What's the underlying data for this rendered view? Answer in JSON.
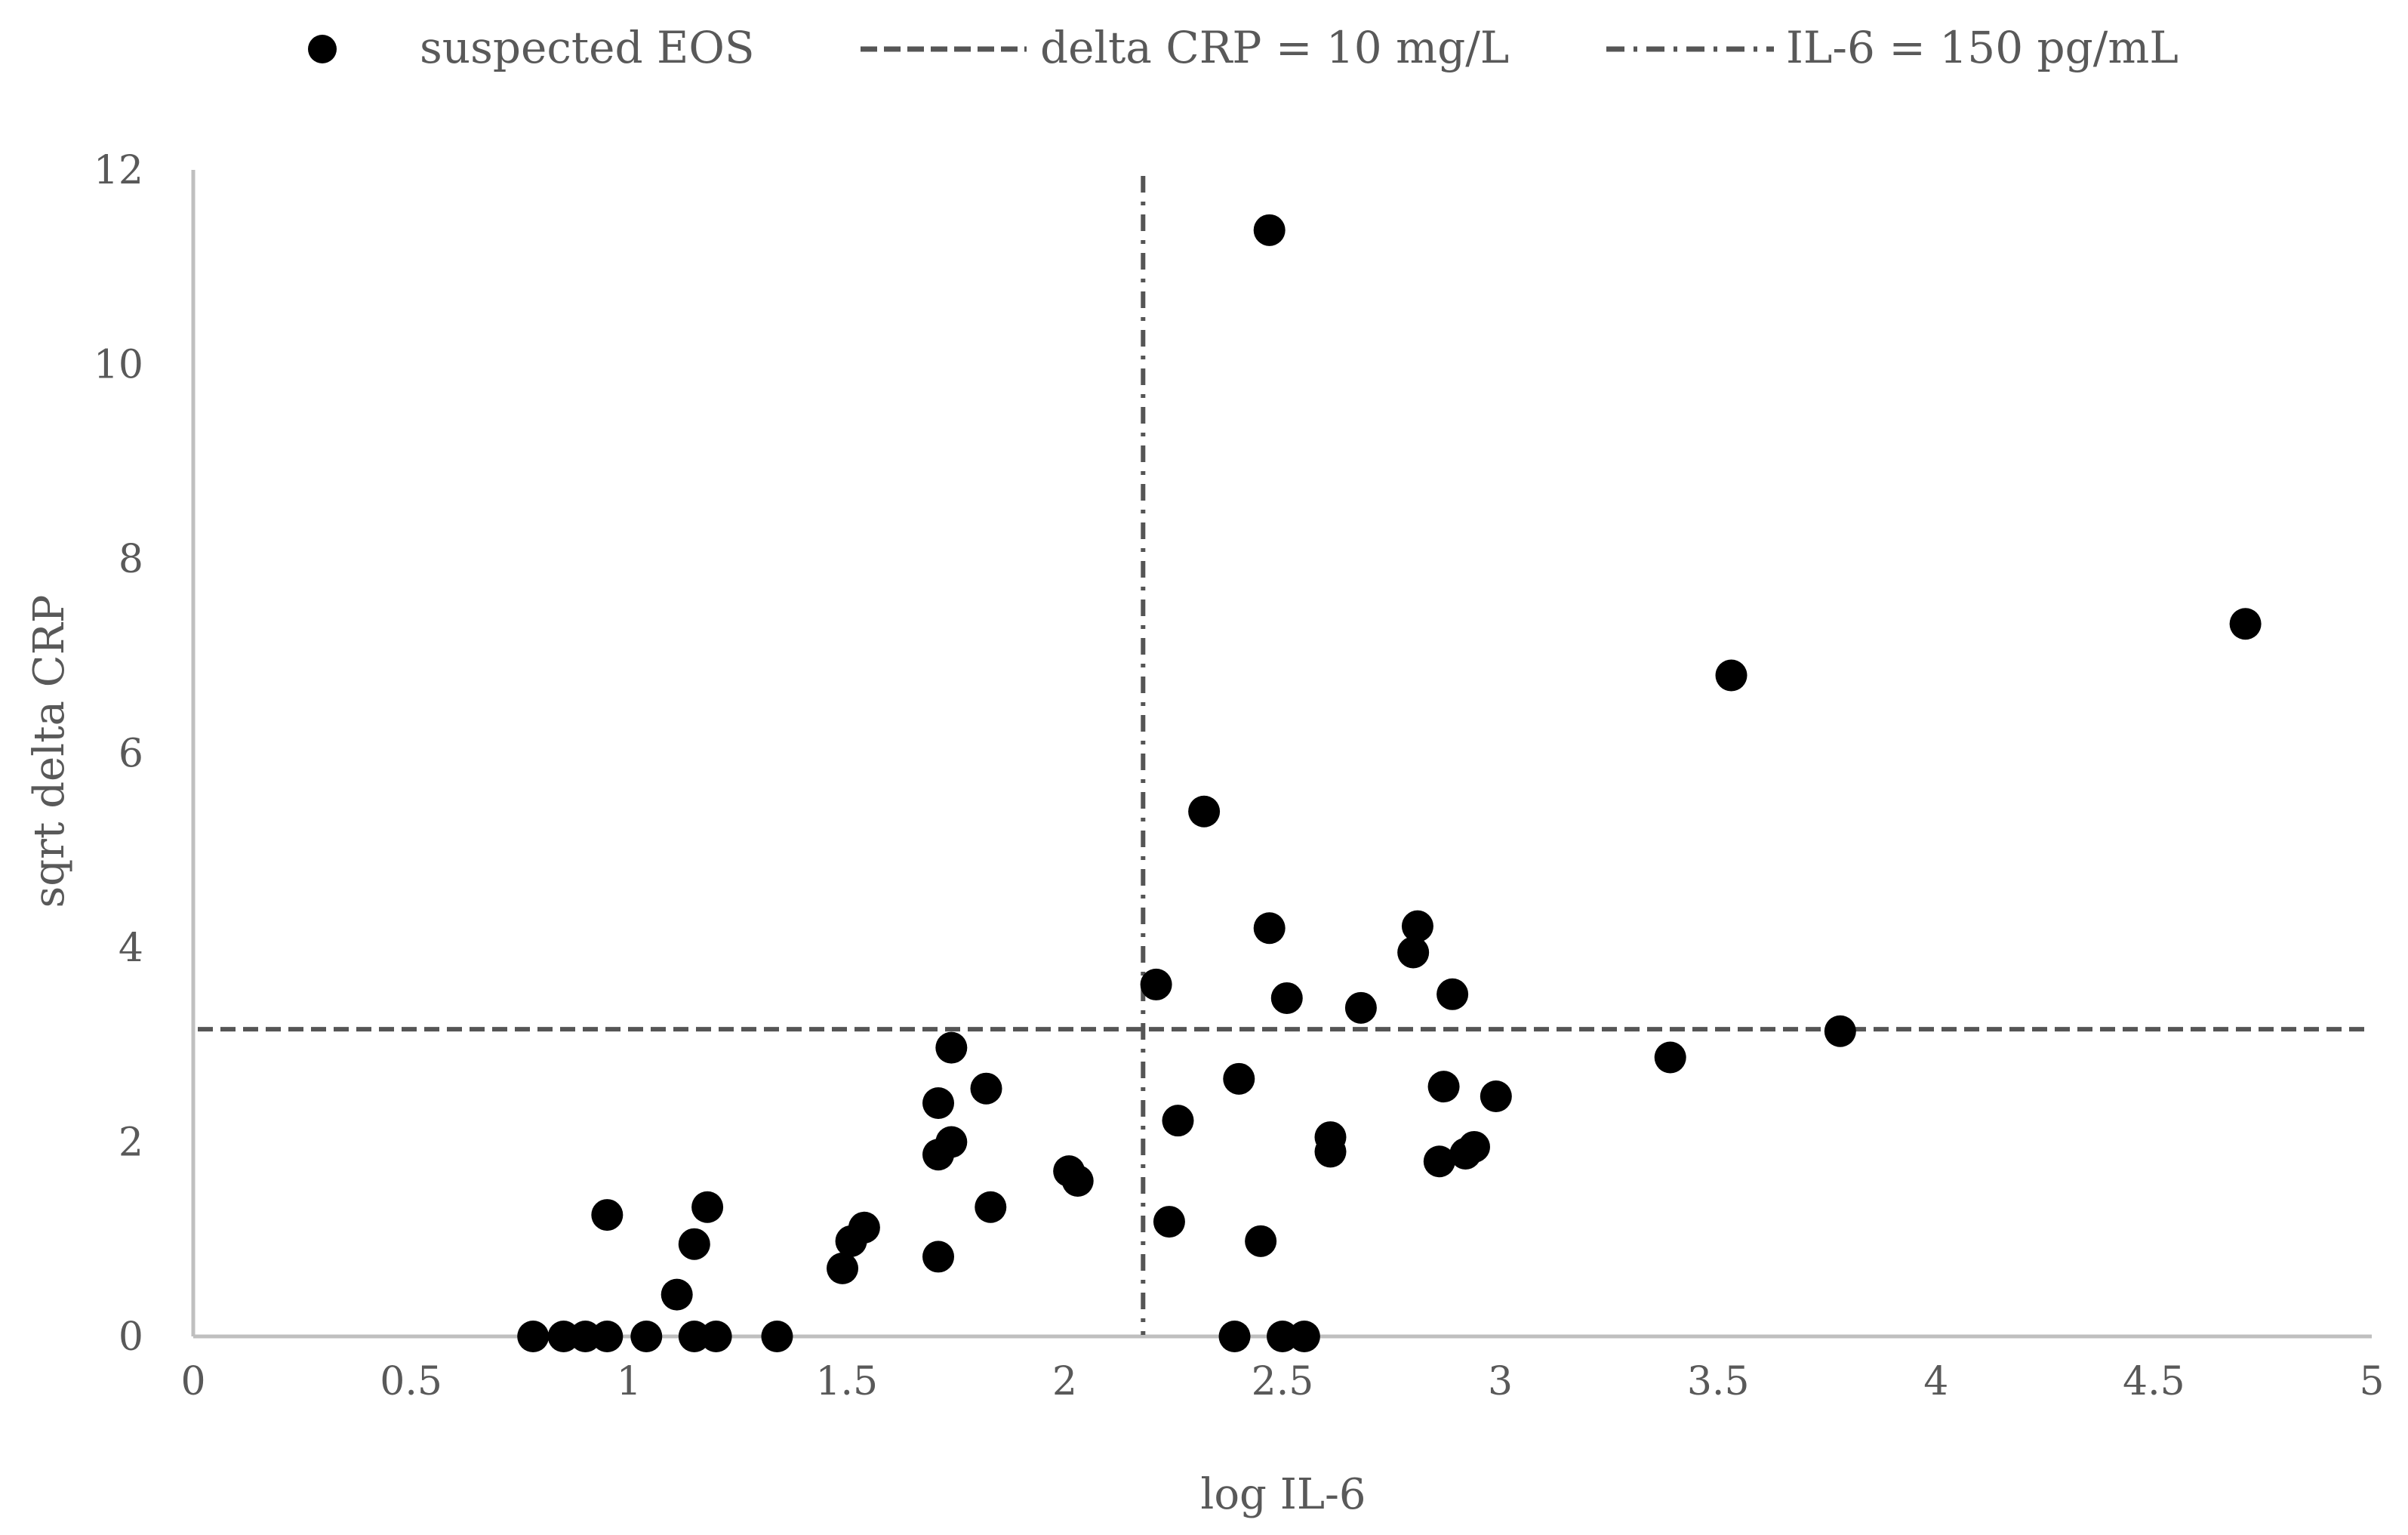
{
  "chart_data": {
    "type": "scatter",
    "title": "",
    "xlabel": "log IL-6",
    "ylabel": "sqrt delta CRP",
    "xlim": [
      0,
      5
    ],
    "ylim": [
      0,
      12
    ],
    "xticks": [
      0,
      0.5,
      1,
      1.5,
      2,
      2.5,
      3,
      3.5,
      4,
      4.5,
      5
    ],
    "xtick_labels": [
      "0",
      "0.5",
      "1",
      "1.5",
      "2",
      "2.5",
      "3",
      "3.5",
      "4",
      "4.5",
      "5"
    ],
    "yticks": [
      0,
      2,
      4,
      6,
      8,
      10,
      12
    ],
    "ytick_labels": [
      "0",
      "2",
      "4",
      "6",
      "8",
      "10",
      "12"
    ],
    "grid": false,
    "legend_position": "top",
    "legend": [
      {
        "label": "suspected EOS",
        "kind": "marker"
      },
      {
        "label": "delta CRP = 10 mg/L",
        "kind": "dashed"
      },
      {
        "label": "IL-6 = 150 pg/mL",
        "kind": "dash-dot"
      }
    ],
    "colors": {
      "points": "#000000",
      "reference_lines": "#555555",
      "axis": "#bfbfbf",
      "text": "#595959"
    },
    "reference_lines": [
      {
        "orientation": "horizontal",
        "value": 3.16,
        "style": "dashed",
        "label": "delta CRP = 10 mg/L"
      },
      {
        "orientation": "vertical",
        "value": 2.18,
        "style": "dash-dot",
        "label": "IL-6 = 150 pg/mL"
      }
    ],
    "series": [
      {
        "name": "suspected EOS",
        "points": [
          [
            0.78,
            0
          ],
          [
            0.85,
            0
          ],
          [
            0.9,
            0
          ],
          [
            0.95,
            0
          ],
          [
            1.04,
            0
          ],
          [
            1.15,
            0
          ],
          [
            1.2,
            0
          ],
          [
            1.34,
            0
          ],
          [
            0.95,
            1.25
          ],
          [
            1.11,
            0.43
          ],
          [
            1.15,
            0.95
          ],
          [
            1.18,
            1.33
          ],
          [
            1.49,
            0.7
          ],
          [
            1.51,
            0.98
          ],
          [
            1.54,
            1.12
          ],
          [
            1.71,
            0.82
          ],
          [
            1.71,
            1.87
          ],
          [
            1.71,
            2.4
          ],
          [
            1.74,
            2.0
          ],
          [
            1.74,
            2.97
          ],
          [
            1.82,
            2.55
          ],
          [
            1.83,
            1.33
          ],
          [
            2.01,
            1.7
          ],
          [
            2.03,
            1.6
          ],
          [
            2.21,
            3.62
          ],
          [
            2.24,
            1.18
          ],
          [
            2.26,
            2.22
          ],
          [
            2.32,
            5.4
          ],
          [
            2.39,
            0
          ],
          [
            2.4,
            2.65
          ],
          [
            2.45,
            0.98
          ],
          [
            2.47,
            11.38
          ],
          [
            2.47,
            4.2
          ],
          [
            2.5,
            0
          ],
          [
            2.51,
            3.48
          ],
          [
            2.55,
            0
          ],
          [
            2.61,
            2.05
          ],
          [
            2.61,
            1.9
          ],
          [
            2.68,
            3.38
          ],
          [
            2.8,
            3.95
          ],
          [
            2.81,
            4.22
          ],
          [
            2.86,
            1.8
          ],
          [
            2.87,
            2.57
          ],
          [
            2.89,
            3.52
          ],
          [
            2.92,
            1.88
          ],
          [
            2.94,
            1.95
          ],
          [
            2.99,
            2.47
          ],
          [
            3.39,
            2.87
          ],
          [
            3.53,
            6.8
          ],
          [
            3.78,
            3.14
          ],
          [
            4.71,
            7.33
          ]
        ]
      }
    ]
  }
}
